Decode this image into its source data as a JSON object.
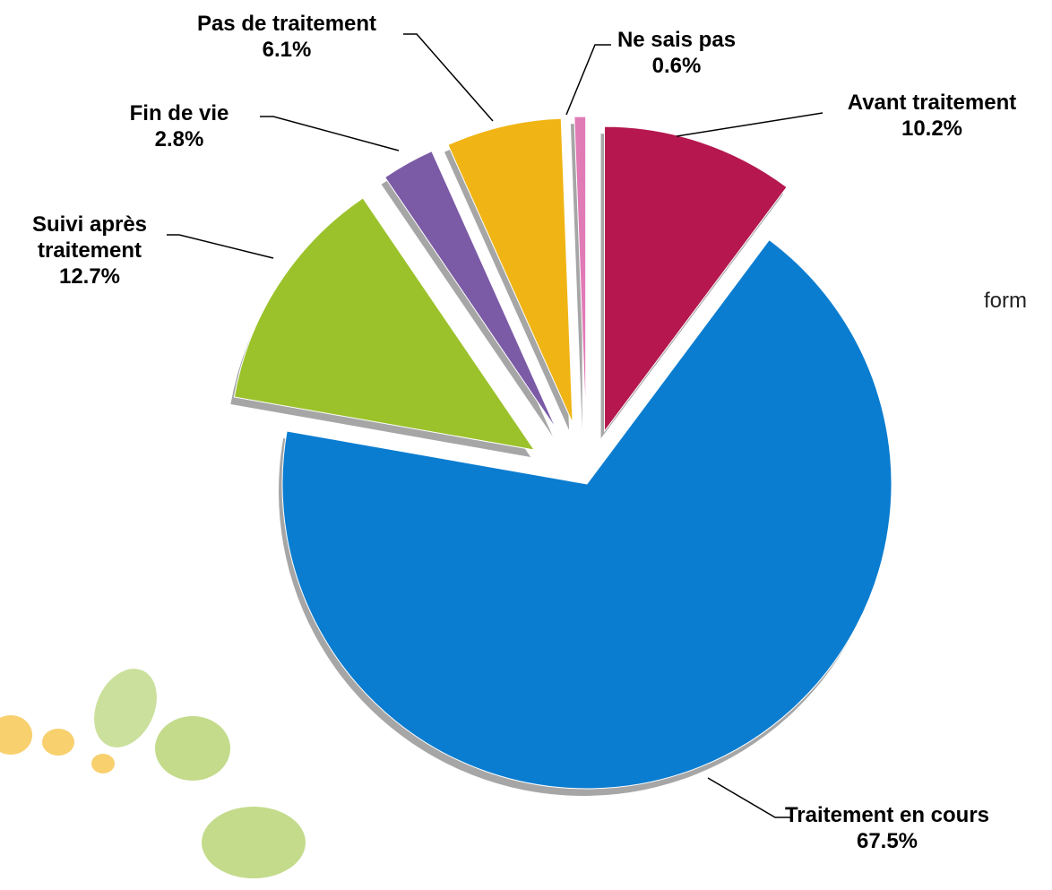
{
  "chart_data": {
    "type": "pie",
    "categories": [
      "Avant traitement",
      "Traitement en cours",
      "Suivi après traitement",
      "Fin de vie",
      "Pas de traitement",
      "Ne sais pas"
    ],
    "values": [
      10.2,
      67.5,
      12.7,
      2.8,
      6.1,
      0.6
    ],
    "value_labels": [
      "10.2%",
      "67.5%",
      "12.7%",
      "2.8%",
      "6.1%",
      "0.6%"
    ],
    "colors": [
      "#b5174e",
      "#0b7dd0",
      "#9bc22b",
      "#7b5aa6",
      "#f0b414",
      "#e07bb5"
    ],
    "annotation": "form"
  }
}
